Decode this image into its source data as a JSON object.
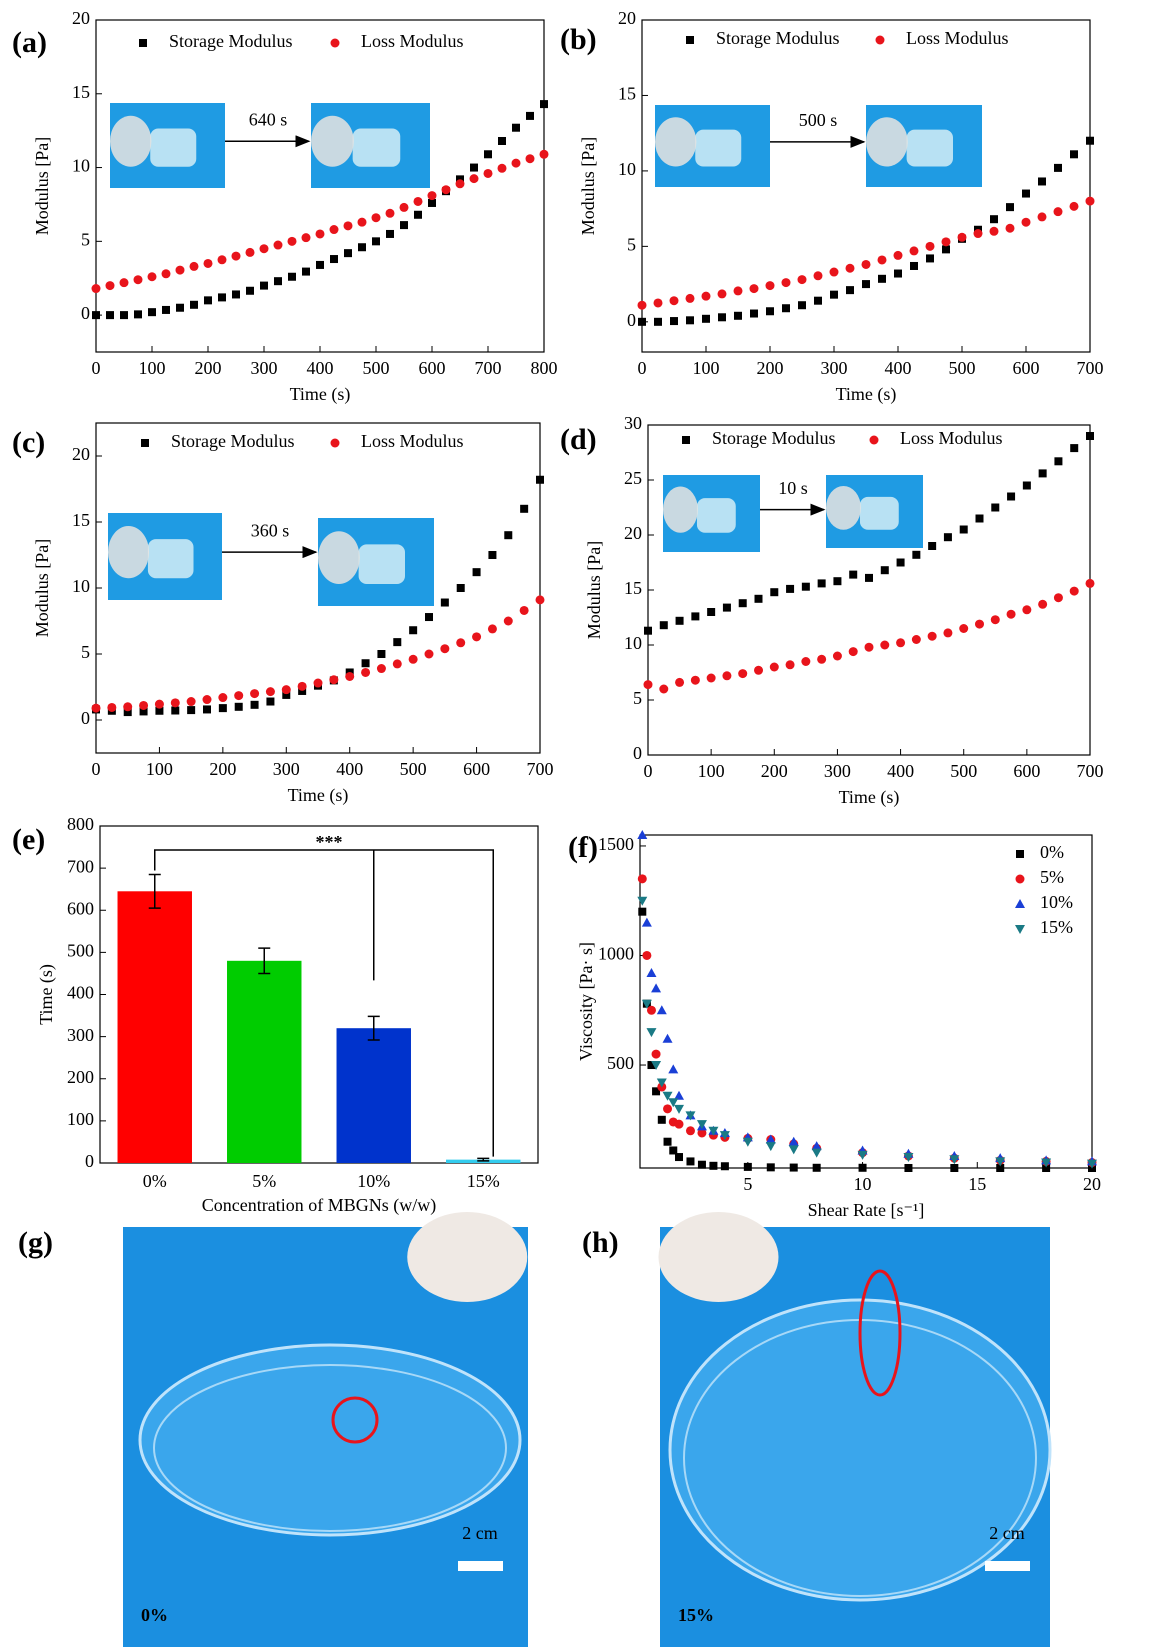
{
  "chart_data": [
    {
      "type": "scatter",
      "panel": "(a)",
      "xlabel": "Time (s)",
      "ylabel": "Modulus [Pa]",
      "annotation": "640 s",
      "xlim": [
        0,
        800
      ],
      "xticks": [
        0,
        100,
        200,
        300,
        400,
        500,
        600,
        700,
        800
      ],
      "ylim": [
        -2.5,
        20
      ],
      "yticks": [
        0,
        5,
        10,
        15,
        20
      ],
      "x": [
        0,
        25,
        50,
        75,
        100,
        125,
        150,
        175,
        200,
        225,
        250,
        275,
        300,
        325,
        350,
        375,
        400,
        425,
        450,
        475,
        500,
        525,
        550,
        575,
        600,
        625,
        650,
        675,
        700,
        725,
        750,
        775,
        800
      ],
      "series": [
        {
          "name": "Storage Modulus",
          "color": "#000000",
          "marker": "square",
          "values": [
            0,
            0,
            0,
            0.05,
            0.2,
            0.35,
            0.5,
            0.7,
            1.0,
            1.2,
            1.4,
            1.65,
            2.0,
            2.3,
            2.6,
            2.95,
            3.4,
            3.8,
            4.2,
            4.6,
            5.0,
            5.5,
            6.1,
            6.8,
            7.6,
            8.4,
            9.2,
            10.0,
            10.9,
            11.8,
            12.7,
            13.5,
            14.3
          ]
        },
        {
          "name": "Loss Modulus",
          "color": "#e8141b",
          "marker": "circle",
          "values": [
            1.8,
            2.0,
            2.2,
            2.4,
            2.6,
            2.8,
            3.05,
            3.3,
            3.5,
            3.75,
            4.0,
            4.25,
            4.5,
            4.75,
            5.0,
            5.25,
            5.5,
            5.8,
            6.05,
            6.3,
            6.6,
            6.9,
            7.3,
            7.7,
            8.1,
            8.5,
            8.9,
            9.25,
            9.6,
            9.95,
            10.3,
            10.6,
            10.9
          ]
        }
      ]
    },
    {
      "type": "scatter",
      "panel": "(b)",
      "xlabel": "Time (s)",
      "ylabel": "Modulus [Pa]",
      "annotation": "500 s",
      "xlim": [
        0,
        700
      ],
      "xticks": [
        0,
        100,
        200,
        300,
        400,
        500,
        600,
        700
      ],
      "ylim": [
        -2,
        20
      ],
      "yticks": [
        0,
        5,
        10,
        15,
        20
      ],
      "x": [
        0,
        25,
        50,
        75,
        100,
        125,
        150,
        175,
        200,
        225,
        250,
        275,
        300,
        325,
        350,
        375,
        400,
        425,
        450,
        475,
        500,
        525,
        550,
        575,
        600,
        625,
        650,
        675,
        700
      ],
      "series": [
        {
          "name": "Storage Modulus",
          "color": "#000000",
          "marker": "square",
          "values": [
            0,
            0,
            0.05,
            0.1,
            0.2,
            0.3,
            0.4,
            0.55,
            0.7,
            0.9,
            1.1,
            1.4,
            1.8,
            2.1,
            2.5,
            2.85,
            3.2,
            3.7,
            4.2,
            4.8,
            5.5,
            6.1,
            6.8,
            7.6,
            8.5,
            9.3,
            10.2,
            11.1,
            12.0
          ]
        },
        {
          "name": "Loss Modulus",
          "color": "#e8141b",
          "marker": "circle",
          "values": [
            1.1,
            1.25,
            1.4,
            1.55,
            1.7,
            1.85,
            2.05,
            2.2,
            2.4,
            2.6,
            2.8,
            3.05,
            3.3,
            3.55,
            3.8,
            4.1,
            4.4,
            4.7,
            5.0,
            5.3,
            5.6,
            5.85,
            6.0,
            6.2,
            6.6,
            6.95,
            7.3,
            7.65,
            8.0
          ]
        }
      ]
    },
    {
      "type": "scatter",
      "panel": "(c)",
      "xlabel": "Time (s)",
      "ylabel": "Modulus [Pa]",
      "annotation": "360 s",
      "xlim": [
        0,
        700
      ],
      "xticks": [
        0,
        100,
        200,
        300,
        400,
        500,
        600,
        700
      ],
      "ylim": [
        -2.5,
        22.5
      ],
      "yticks": [
        0,
        5,
        10,
        15,
        20
      ],
      "x": [
        0,
        25,
        50,
        75,
        100,
        125,
        150,
        175,
        200,
        225,
        250,
        275,
        300,
        325,
        350,
        375,
        400,
        425,
        450,
        475,
        500,
        525,
        550,
        575,
        600,
        625,
        650,
        675,
        700
      ],
      "series": [
        {
          "name": "Storage Modulus",
          "color": "#000000",
          "marker": "square",
          "values": [
            0.8,
            0.7,
            0.6,
            0.65,
            0.7,
            0.72,
            0.75,
            0.8,
            0.9,
            1.0,
            1.15,
            1.4,
            1.9,
            2.2,
            2.6,
            3.0,
            3.6,
            4.3,
            5.0,
            5.9,
            6.8,
            7.8,
            8.9,
            10.0,
            11.2,
            12.5,
            14.0,
            16.0,
            18.2
          ]
        },
        {
          "name": "Loss Modulus",
          "color": "#e8141b",
          "marker": "circle",
          "values": [
            0.9,
            0.95,
            1.0,
            1.1,
            1.2,
            1.3,
            1.4,
            1.55,
            1.7,
            1.85,
            2.0,
            2.15,
            2.3,
            2.55,
            2.8,
            3.05,
            3.3,
            3.6,
            3.9,
            4.25,
            4.6,
            5.0,
            5.4,
            5.85,
            6.3,
            6.9,
            7.5,
            8.3,
            9.1
          ]
        }
      ]
    },
    {
      "type": "scatter",
      "panel": "(d)",
      "xlabel": "Time (s)",
      "ylabel": "Modulus [Pa]",
      "annotation": "10 s",
      "xlim": [
        0,
        700
      ],
      "xticks": [
        0,
        100,
        200,
        300,
        400,
        500,
        600,
        700
      ],
      "ylim": [
        0,
        30
      ],
      "yticks": [
        0,
        5,
        10,
        15,
        20,
        25,
        30
      ],
      "x": [
        0,
        25,
        50,
        75,
        100,
        125,
        150,
        175,
        200,
        225,
        250,
        275,
        300,
        325,
        350,
        375,
        400,
        425,
        450,
        475,
        500,
        525,
        550,
        575,
        600,
        625,
        650,
        675,
        700
      ],
      "series": [
        {
          "name": "Storage Modulus",
          "color": "#000000",
          "marker": "square",
          "values": [
            11.3,
            11.8,
            12.2,
            12.6,
            13.0,
            13.4,
            13.8,
            14.2,
            14.8,
            15.1,
            15.3,
            15.6,
            15.8,
            16.4,
            16.1,
            16.8,
            17.5,
            18.2,
            19.0,
            19.8,
            20.5,
            21.5,
            22.5,
            23.5,
            24.5,
            25.6,
            26.7,
            27.9,
            29.0
          ]
        },
        {
          "name": "Loss Modulus",
          "color": "#e8141b",
          "marker": "circle",
          "values": [
            6.4,
            6.0,
            6.6,
            6.8,
            7.0,
            7.2,
            7.4,
            7.7,
            8.0,
            8.2,
            8.5,
            8.7,
            9.0,
            9.4,
            9.8,
            10.0,
            10.2,
            10.5,
            10.8,
            11.1,
            11.5,
            11.9,
            12.3,
            12.8,
            13.2,
            13.7,
            14.3,
            14.9,
            15.6
          ]
        }
      ]
    },
    {
      "type": "bar",
      "panel": "(e)",
      "xlabel": "Concentration of MBGNs (w/w)",
      "ylabel": "Time (s)",
      "annotation": "***",
      "categories": [
        "0%",
        "5%",
        "10%",
        "15%"
      ],
      "values": [
        645,
        480,
        320,
        8
      ],
      "errors": [
        40,
        30,
        28,
        3
      ],
      "colors": [
        "#ff0000",
        "#00cc00",
        "#0033cc",
        "#33ccee"
      ],
      "ylim": [
        0,
        800
      ],
      "yticks": [
        0,
        100,
        200,
        300,
        400,
        500,
        600,
        700,
        800
      ]
    },
    {
      "type": "scatter",
      "panel": "(f)",
      "xlabel": "Shear Rate [s⁻¹]",
      "ylabel": "Viscosity [Pa· s]",
      "xlim": [
        0.3,
        20
      ],
      "xticks": [
        5,
        10,
        15,
        20
      ],
      "ylim": [
        30,
        1550
      ],
      "yticks": [
        500,
        1000,
        1500
      ],
      "x": [
        0.4,
        0.6,
        0.8,
        1,
        1.25,
        1.5,
        1.75,
        2,
        2.5,
        3,
        3.5,
        4,
        5,
        6,
        7,
        8,
        10,
        12,
        14,
        16,
        18,
        20
      ],
      "series": [
        {
          "name": "0%",
          "color": "#000000",
          "marker": "square",
          "values": [
            1200,
            780,
            500,
            380,
            250,
            150,
            110,
            80,
            60,
            45,
            40,
            38,
            35,
            33,
            32,
            31,
            31,
            30,
            30,
            30,
            30,
            30
          ]
        },
        {
          "name": "5%",
          "color": "#e8141b",
          "marker": "circle",
          "values": [
            1350,
            1000,
            750,
            550,
            400,
            300,
            240,
            230,
            200,
            190,
            180,
            170,
            165,
            160,
            140,
            120,
            100,
            85,
            75,
            65,
            60,
            55
          ]
        },
        {
          "name": "10%",
          "color": "#1a3fd6",
          "marker": "triangle-up",
          "values": [
            1550,
            1150,
            920,
            850,
            750,
            620,
            480,
            360,
            270,
            220,
            200,
            190,
            170,
            160,
            150,
            130,
            110,
            95,
            85,
            75,
            65,
            60
          ]
        },
        {
          "name": "15%",
          "color": "#1a7a85",
          "marker": "triangle-down",
          "values": [
            1250,
            780,
            650,
            500,
            420,
            360,
            330,
            300,
            270,
            230,
            200,
            180,
            150,
            130,
            115,
            100,
            90,
            80,
            70,
            60,
            55,
            50
          ]
        }
      ]
    }
  ],
  "photos": [
    {
      "panel": "(g)",
      "label": "0%",
      "scale": "2 cm"
    },
    {
      "panel": "(h)",
      "label": "15%",
      "scale": "2 cm"
    }
  ]
}
